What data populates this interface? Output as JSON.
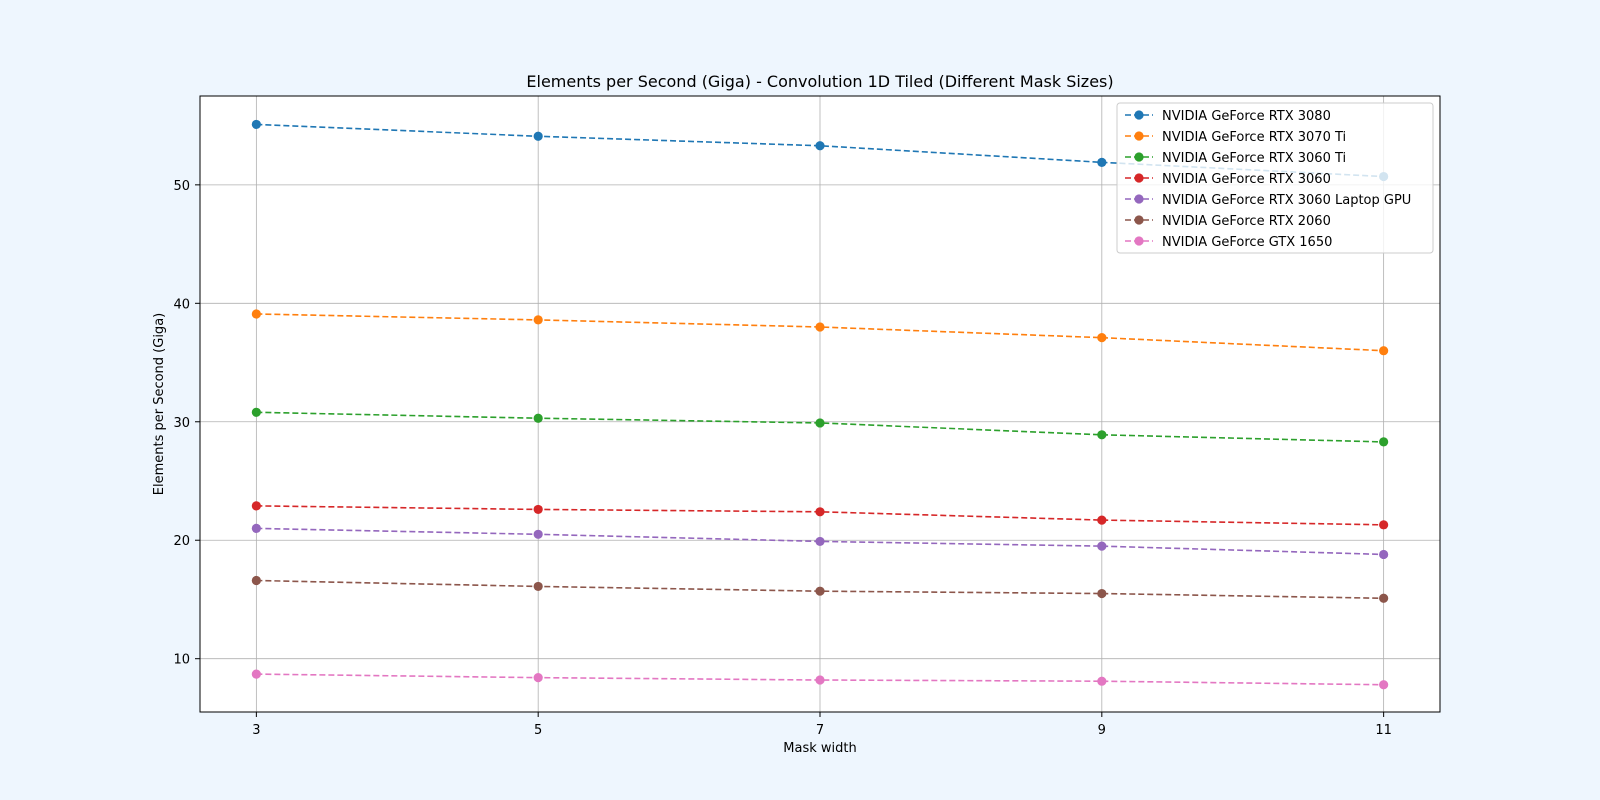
{
  "chart_data": {
    "type": "line",
    "title": "Elements per Second (Giga) - Convolution 1D Tiled (Different Mask Sizes)",
    "xlabel": "Mask width",
    "ylabel": "Elements per Second (Giga)",
    "x": [
      3,
      5,
      7,
      9,
      11
    ],
    "x_ticks": [
      "3",
      "5",
      "7",
      "9",
      "11"
    ],
    "y_ticks": [
      "10",
      "20",
      "30",
      "40",
      "50"
    ],
    "xlim": [
      2.6,
      11.4
    ],
    "ylim": [
      5.5,
      57.5
    ],
    "grid": true,
    "line_style": "dashed",
    "marker": "circle",
    "legend_position": "top-right",
    "series": [
      {
        "name": "NVIDIA GeForce RTX 3080",
        "color": "#1f77b4",
        "values": [
          55.1,
          54.1,
          53.3,
          51.9,
          50.7
        ]
      },
      {
        "name": "NVIDIA GeForce RTX 3070 Ti",
        "color": "#ff7f0e",
        "values": [
          39.1,
          38.6,
          38.0,
          37.1,
          36.0
        ]
      },
      {
        "name": "NVIDIA GeForce RTX 3060 Ti",
        "color": "#2ca02c",
        "values": [
          30.8,
          30.3,
          29.9,
          28.9,
          28.3
        ]
      },
      {
        "name": "NVIDIA GeForce RTX 3060",
        "color": "#d62728",
        "values": [
          22.9,
          22.6,
          22.4,
          21.7,
          21.3
        ]
      },
      {
        "name": "NVIDIA GeForce RTX 3060 Laptop GPU",
        "color": "#9467bd",
        "values": [
          21.0,
          20.5,
          19.9,
          19.5,
          18.8
        ]
      },
      {
        "name": "NVIDIA GeForce RTX 2060",
        "color": "#8c564b",
        "values": [
          16.6,
          16.1,
          15.7,
          15.5,
          15.1
        ]
      },
      {
        "name": "NVIDIA GeForce GTX 1650",
        "color": "#e377c2",
        "values": [
          8.7,
          8.4,
          8.2,
          8.1,
          7.8
        ]
      }
    ]
  }
}
